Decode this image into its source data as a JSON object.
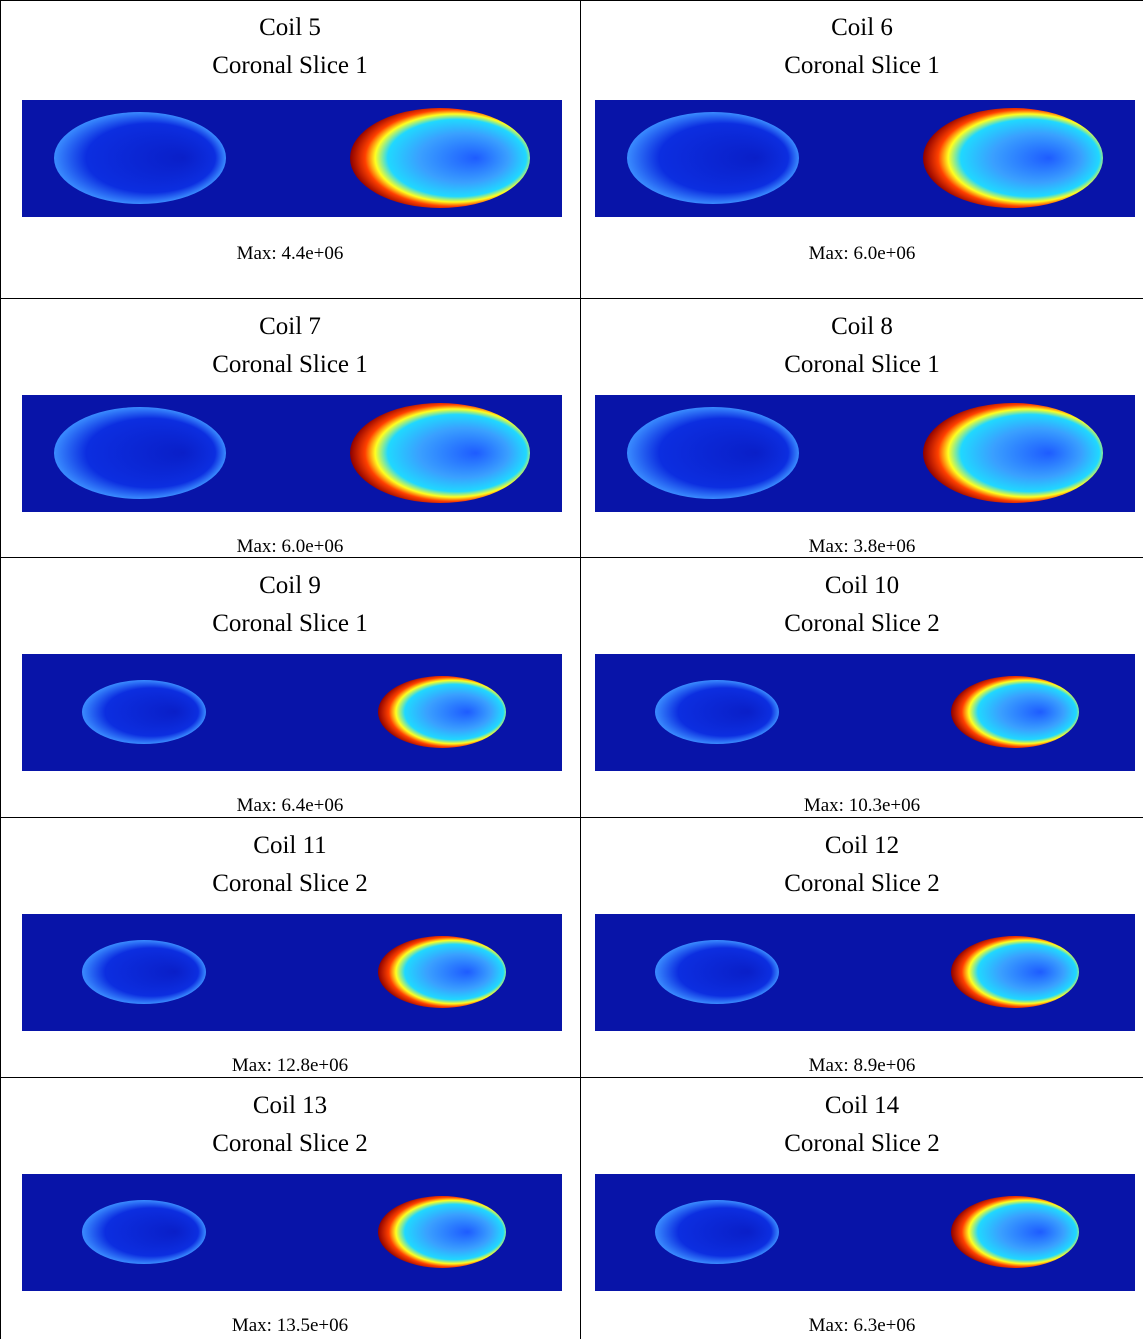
{
  "cells": [
    {
      "coil": "Coil 5",
      "slice": "Coronal Slice 1",
      "max": "Max: 4.4e+06"
    },
    {
      "coil": "Coil 6",
      "slice": "Coronal Slice 1",
      "max": "Max: 6.0e+06"
    },
    {
      "coil": "Coil 7",
      "slice": "Coronal Slice 1",
      "max": "Max: 6.0e+06"
    },
    {
      "coil": "Coil 8",
      "slice": "Coronal Slice 1",
      "max": "Max: 3.8e+06"
    },
    {
      "coil": "Coil 9",
      "slice": "Coronal Slice 1",
      "max": "Max: 6.4e+06"
    },
    {
      "coil": "Coil 10",
      "slice": "Coronal Slice 2",
      "max": "Max: 10.3e+06"
    },
    {
      "coil": "Coil 11",
      "slice": "Coronal Slice 2",
      "max": "Max: 12.8e+06"
    },
    {
      "coil": "Coil 12",
      "slice": "Coronal Slice 2",
      "max": "Max: 8.9e+06"
    },
    {
      "coil": "Coil 13",
      "slice": "Coronal Slice 2",
      "max": "Max: 13.5e+06"
    },
    {
      "coil": "Coil 14",
      "slice": "Coronal Slice 2",
      "max": "Max: 6.3e+06"
    }
  ]
}
